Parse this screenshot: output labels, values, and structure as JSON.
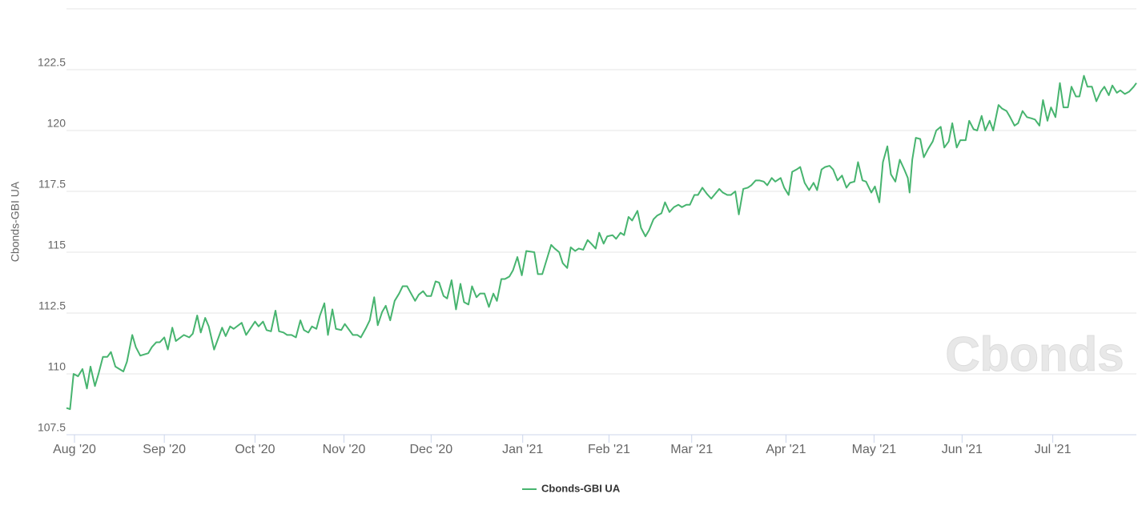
{
  "chart_data": {
    "type": "line",
    "watermark": "Cbonds",
    "ylabel": "Cbonds-GBI UA",
    "x": [
      -0.09,
      -0.05,
      -0.01,
      0.04,
      0.09,
      0.14,
      0.18,
      0.23,
      0.27,
      0.32,
      0.37,
      0.41,
      0.46,
      0.55,
      0.59,
      0.65,
      0.69,
      0.74,
      0.83,
      0.87,
      0.92,
      0.96,
      1.01,
      1.05,
      1.1,
      1.14,
      1.23,
      1.29,
      1.33,
      1.38,
      1.42,
      1.47,
      1.51,
      1.57,
      1.66,
      1.7,
      1.75,
      1.79,
      1.88,
      1.93,
      2.03,
      2.07,
      2.12,
      2.16,
      2.21,
      2.26,
      2.3,
      2.35,
      2.39,
      2.44,
      2.49,
      2.54,
      2.58,
      2.63,
      2.67,
      2.72,
      2.76,
      2.81,
      2.85,
      2.9,
      2.94,
      3.0,
      3.04,
      3.13,
      3.18,
      3.22,
      3.28,
      3.32,
      3.37,
      3.41,
      3.46,
      3.5,
      3.55,
      3.6,
      3.65,
      3.69,
      3.74,
      3.83,
      3.87,
      3.92,
      3.96,
      4.01,
      4.06,
      4.1,
      4.15,
      4.19,
      4.24,
      4.29,
      4.34,
      4.38,
      4.43,
      4.47,
      4.52,
      4.56,
      4.61,
      4.66,
      4.71,
      4.75,
      4.8,
      4.84,
      4.89,
      4.93,
      4.98,
      5.03,
      5.08,
      5.17,
      5.21,
      5.26,
      5.36,
      5.4,
      5.45,
      5.49,
      5.54,
      5.58,
      5.63,
      5.67,
      5.72,
      5.77,
      5.81,
      5.86,
      5.9,
      5.95,
      5.99,
      6.05,
      6.09,
      6.14,
      6.18,
      6.23,
      6.27,
      6.33,
      6.37,
      6.42,
      6.46,
      6.51,
      6.55,
      6.6,
      6.64,
      6.69,
      6.74,
      6.79,
      6.83,
      6.88,
      6.92,
      6.97,
      7.01,
      7.06,
      7.11,
      7.16,
      7.25,
      7.29,
      7.34,
      7.38,
      7.43,
      7.47,
      7.52,
      7.57,
      7.61,
      7.66,
      7.7,
      7.75,
      7.79,
      7.84,
      7.88,
      7.94,
      7.98,
      8.03,
      8.07,
      8.12,
      8.16,
      8.21,
      8.26,
      8.31,
      8.35,
      8.4,
      8.44,
      8.49,
      8.53,
      8.58,
      8.63,
      8.68,
      8.72,
      8.77,
      8.81,
      8.86,
      8.9,
      8.96,
      9.0,
      9.05,
      9.09,
      9.14,
      9.18,
      9.23,
      9.28,
      9.33,
      9.37,
      9.39,
      9.42,
      9.46,
      9.51,
      9.55,
      9.6,
      9.65,
      9.69,
      9.74,
      9.78,
      9.83,
      9.87,
      9.92,
      9.96,
      10.02,
      10.06,
      10.11,
      10.15,
      10.2,
      10.24,
      10.29,
      10.33,
      10.39,
      10.43,
      10.48,
      10.52,
      10.57,
      10.61,
      10.66,
      10.71,
      10.76,
      10.8,
      10.85,
      10.89,
      10.94,
      10.98,
      11.03,
      11.08,
      11.12,
      11.17,
      11.21,
      11.26,
      11.3,
      11.35,
      11.39,
      11.44,
      11.49,
      11.54,
      11.58,
      11.63,
      11.67,
      11.72,
      11.76,
      11.81,
      11.86,
      11.91,
      11.94
    ],
    "series": [
      {
        "name": "Cbonds-GBI UA",
        "color": "#47b46f",
        "values": [
          108.6,
          108.55,
          110.0,
          109.9,
          110.2,
          109.4,
          110.3,
          109.5,
          110.0,
          110.7,
          110.7,
          110.9,
          110.3,
          110.1,
          110.5,
          111.6,
          111.1,
          110.75,
          110.85,
          111.1,
          111.3,
          111.3,
          111.5,
          111.0,
          111.9,
          111.35,
          111.6,
          111.5,
          111.65,
          112.4,
          111.7,
          112.3,
          111.95,
          111.0,
          111.9,
          111.55,
          111.95,
          111.85,
          112.1,
          111.6,
          112.15,
          111.95,
          112.15,
          111.8,
          111.75,
          112.6,
          111.75,
          111.7,
          111.6,
          111.6,
          111.5,
          112.2,
          111.8,
          111.7,
          111.95,
          111.85,
          112.4,
          112.9,
          111.6,
          112.65,
          111.85,
          111.8,
          112.05,
          111.6,
          111.6,
          111.5,
          111.9,
          112.2,
          113.15,
          112.0,
          112.55,
          112.8,
          112.2,
          113.0,
          113.3,
          113.6,
          113.6,
          113.0,
          113.25,
          113.4,
          113.2,
          113.2,
          113.8,
          113.75,
          113.2,
          113.1,
          113.85,
          112.65,
          113.7,
          112.95,
          112.85,
          113.6,
          113.15,
          113.3,
          113.3,
          112.75,
          113.3,
          113.0,
          113.9,
          113.9,
          114.0,
          114.25,
          114.8,
          114.05,
          115.05,
          115.0,
          114.1,
          114.1,
          115.3,
          115.15,
          115.0,
          114.55,
          114.35,
          115.2,
          115.05,
          115.15,
          115.1,
          115.5,
          115.35,
          115.15,
          115.8,
          115.35,
          115.65,
          115.7,
          115.55,
          115.8,
          115.7,
          116.45,
          116.3,
          116.7,
          116.0,
          115.65,
          115.9,
          116.35,
          116.5,
          116.6,
          117.05,
          116.65,
          116.85,
          116.95,
          116.85,
          116.95,
          116.95,
          117.35,
          117.35,
          117.65,
          117.4,
          117.2,
          117.6,
          117.45,
          117.35,
          117.35,
          117.5,
          116.55,
          117.6,
          117.65,
          117.75,
          117.95,
          117.95,
          117.9,
          117.75,
          118.05,
          117.9,
          118.05,
          117.65,
          117.35,
          118.3,
          118.4,
          118.5,
          117.85,
          117.55,
          117.85,
          117.55,
          118.4,
          118.5,
          118.55,
          118.4,
          117.95,
          118.15,
          117.65,
          117.85,
          117.9,
          118.7,
          117.95,
          117.9,
          117.45,
          117.7,
          117.05,
          118.7,
          119.35,
          118.2,
          117.9,
          118.8,
          118.4,
          118.05,
          117.45,
          118.8,
          119.7,
          119.65,
          118.9,
          119.25,
          119.55,
          120.0,
          120.15,
          119.3,
          119.55,
          120.3,
          119.3,
          119.6,
          119.6,
          120.4,
          120.05,
          120.0,
          120.6,
          120.0,
          120.4,
          120.0,
          121.05,
          120.9,
          120.8,
          120.55,
          120.2,
          120.3,
          120.8,
          120.55,
          120.5,
          120.45,
          120.2,
          121.25,
          120.4,
          120.95,
          120.55,
          121.95,
          120.95,
          120.95,
          121.8,
          121.4,
          121.4,
          122.25,
          121.8,
          121.8,
          121.2,
          121.6,
          121.8,
          121.45,
          121.85,
          121.55,
          121.65,
          121.5,
          121.6,
          121.8,
          121.95
        ]
      }
    ],
    "xlim": [
      -0.09,
      11.94
    ],
    "xticks": [
      {
        "value": 0,
        "label": "Aug '20"
      },
      {
        "value": 1.01,
        "label": "Sep '20"
      },
      {
        "value": 2.03,
        "label": "Oct '20"
      },
      {
        "value": 3.03,
        "label": "Nov '20"
      },
      {
        "value": 4.01,
        "label": "Dec '20"
      },
      {
        "value": 5.04,
        "label": "Jan '21"
      },
      {
        "value": 6.01,
        "label": "Feb '21"
      },
      {
        "value": 6.94,
        "label": "Mar '21"
      },
      {
        "value": 8.0,
        "label": "Apr '21"
      },
      {
        "value": 8.99,
        "label": "May '21"
      },
      {
        "value": 9.98,
        "label": "Jun '21"
      },
      {
        "value": 11.0,
        "label": "Jul '21"
      }
    ],
    "ylim": [
      107.5,
      125
    ],
    "yticks": [
      107.5,
      110,
      112.5,
      115,
      117.5,
      120,
      122.5
    ],
    "grid": true,
    "legend": "bottom"
  }
}
